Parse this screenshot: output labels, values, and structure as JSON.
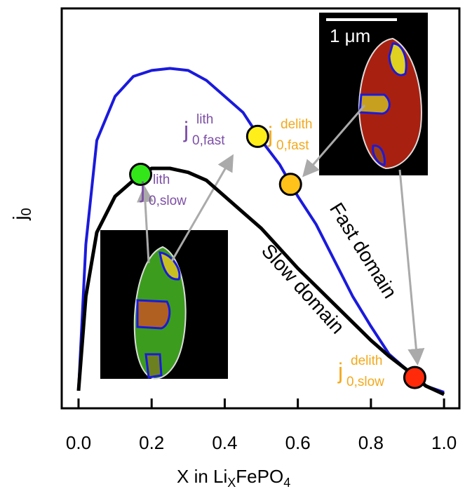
{
  "chart_data": {
    "type": "line",
    "x": [
      0.0,
      0.02,
      0.05,
      0.1,
      0.15,
      0.2,
      0.25,
      0.3,
      0.35,
      0.4,
      0.45,
      0.5,
      0.55,
      0.6,
      0.65,
      0.7,
      0.75,
      0.8,
      0.85,
      0.9,
      0.95,
      1.0
    ],
    "series": [
      {
        "name": "Fast domain",
        "color": "#1a1adc",
        "values": [
          0.044,
          0.41,
          0.67,
          0.78,
          0.83,
          0.845,
          0.85,
          0.845,
          0.82,
          0.78,
          0.74,
          0.67,
          0.61,
          0.53,
          0.46,
          0.37,
          0.28,
          0.205,
          0.135,
          0.095,
          0.056,
          0.04
        ]
      },
      {
        "name": "Slow domain",
        "color": "#000000",
        "values": [
          0.044,
          0.28,
          0.44,
          0.53,
          0.57,
          0.6,
          0.6,
          0.59,
          0.57,
          0.53,
          0.49,
          0.45,
          0.4,
          0.35,
          0.305,
          0.26,
          0.215,
          0.17,
          0.13,
          0.095,
          0.056,
          0.035
        ]
      }
    ],
    "markers": {
      "x": [
        0.17,
        0.49,
        0.58,
        0.92
      ],
      "y": [
        0.585,
        0.68,
        0.56,
        0.077
      ],
      "colors": [
        "#33e61a",
        "#ffee1a",
        "#ffc21a",
        "#ff2a0a"
      ]
    },
    "annotations": [
      {
        "base": "j",
        "sub": "0,fast",
        "sup": "lith",
        "color": "#7d4fa6"
      },
      {
        "base": "j",
        "sub": "0,fast",
        "sup": "delith",
        "color": "#f2aa1e"
      },
      {
        "base": "j",
        "sub": "0,slow",
        "sup": "lith",
        "color": "#7d4fa6"
      },
      {
        "base": "j",
        "sub": "0,slow",
        "sup": "delith",
        "color": "#f2aa1e"
      }
    ],
    "scale_bar": "1 μm",
    "xlabel": {
      "text": "X in Li",
      "sub": "X",
      "rest": "FePO",
      "sub2": "4"
    },
    "ylabel": {
      "base": "j",
      "sub": "0"
    },
    "xlim": [
      -0.046,
      1.042
    ],
    "ylim": [
      0,
      1
    ],
    "xticks": [
      {
        "value": 0,
        "label": "0.0"
      },
      0.2,
      0.4,
      0.6,
      0.8,
      {
        "value": 1,
        "label": "1.0"
      }
    ]
  }
}
